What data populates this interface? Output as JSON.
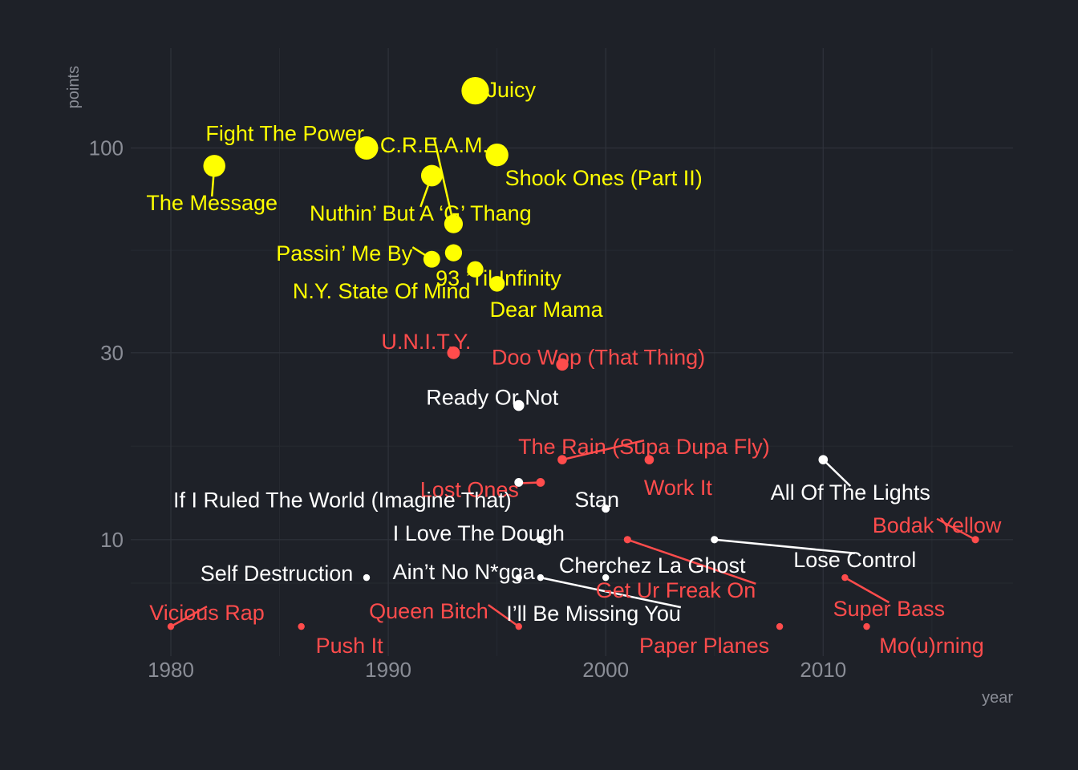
{
  "chart_data": {
    "type": "scatter",
    "xlabel": "year",
    "ylabel": "points",
    "x_scale": "linear",
    "y_scale": "log10",
    "xlim": [
      1978.2,
      2018.2
    ],
    "ylim": [
      5.8,
      160
    ],
    "x_ticks": [
      1980,
      1990,
      2000,
      2010
    ],
    "y_ticks": [
      10,
      30,
      100
    ],
    "x_tick_labels": [
      "1980",
      "1990",
      "2000",
      "2010"
    ],
    "y_tick_labels": [
      "10",
      "30",
      "100"
    ],
    "grid": true,
    "series": [
      {
        "color": "#ffff00",
        "points": [
          {
            "x": 1994,
            "y": 140,
            "label": "Juicy"
          },
          {
            "x": 1989,
            "y": 100,
            "label": "Fight The Power"
          },
          {
            "x": 1995,
            "y": 96,
            "label": "Shook Ones (Part II)"
          },
          {
            "x": 1982,
            "y": 90,
            "label": "The Message"
          },
          {
            "x": 1992,
            "y": 85,
            "label": "Nuthin’ But A ‘G’ Thang"
          },
          {
            "x": 1993,
            "y": 64,
            "label": "C.R.E.A.M."
          },
          {
            "x": 1993,
            "y": 54,
            "label": "93 ’Til Infinity"
          },
          {
            "x": 1992,
            "y": 52,
            "label": "Passin’ Me By"
          },
          {
            "x": 1994,
            "y": 49,
            "label": "N.Y. State Of Mind"
          },
          {
            "x": 1995,
            "y": 45,
            "label": "Dear Mama"
          }
        ]
      },
      {
        "color": "#ff4c4c",
        "points": [
          {
            "x": 1993,
            "y": 30,
            "label": "U.N.I.T.Y."
          },
          {
            "x": 1998,
            "y": 28,
            "label": "Doo Wop (That Thing)"
          },
          {
            "x": 1998,
            "y": 16,
            "label": "The Rain (Supa Dupa Fly)"
          },
          {
            "x": 2002,
            "y": 16,
            "label": "Work It"
          },
          {
            "x": 1997,
            "y": 14,
            "label": "Lost Ones"
          },
          {
            "x": 2001,
            "y": 10,
            "label": "Get Ur Freak On"
          },
          {
            "x": 2017,
            "y": 10,
            "label": "Bodak Yellow"
          },
          {
            "x": 2011,
            "y": 8,
            "label": "Super Bass"
          },
          {
            "x": 1980,
            "y": 6,
            "label": "Vicious Rap"
          },
          {
            "x": 1986,
            "y": 6,
            "label": "Push It"
          },
          {
            "x": 1996,
            "y": 6,
            "label": "Queen Bitch"
          },
          {
            "x": 2008,
            "y": 6,
            "label": "Paper Planes"
          },
          {
            "x": 2012,
            "y": 6,
            "label": "Mo(u)rning"
          }
        ]
      },
      {
        "color": "#ffffff",
        "points": [
          {
            "x": 1996,
            "y": 22,
            "label": "Ready Or Not"
          },
          {
            "x": 2010,
            "y": 16,
            "label": "All Of The Lights"
          },
          {
            "x": 1996,
            "y": 14,
            "label": "If I Ruled The World (Imagine That)"
          },
          {
            "x": 2000,
            "y": 12,
            "label": "Stan"
          },
          {
            "x": 1997,
            "y": 10,
            "label": "I Love The Dough"
          },
          {
            "x": 2005,
            "y": 10,
            "label": "Lose Control"
          },
          {
            "x": 1989,
            "y": 8,
            "label": "Self Destruction"
          },
          {
            "x": 1996,
            "y": 8,
            "label": "Ain’t No N*gga"
          },
          {
            "x": 1997,
            "y": 8,
            "label": "I’ll Be Missing You"
          },
          {
            "x": 2000,
            "y": 8,
            "label": "Cherchez La Ghost"
          }
        ]
      }
    ]
  }
}
